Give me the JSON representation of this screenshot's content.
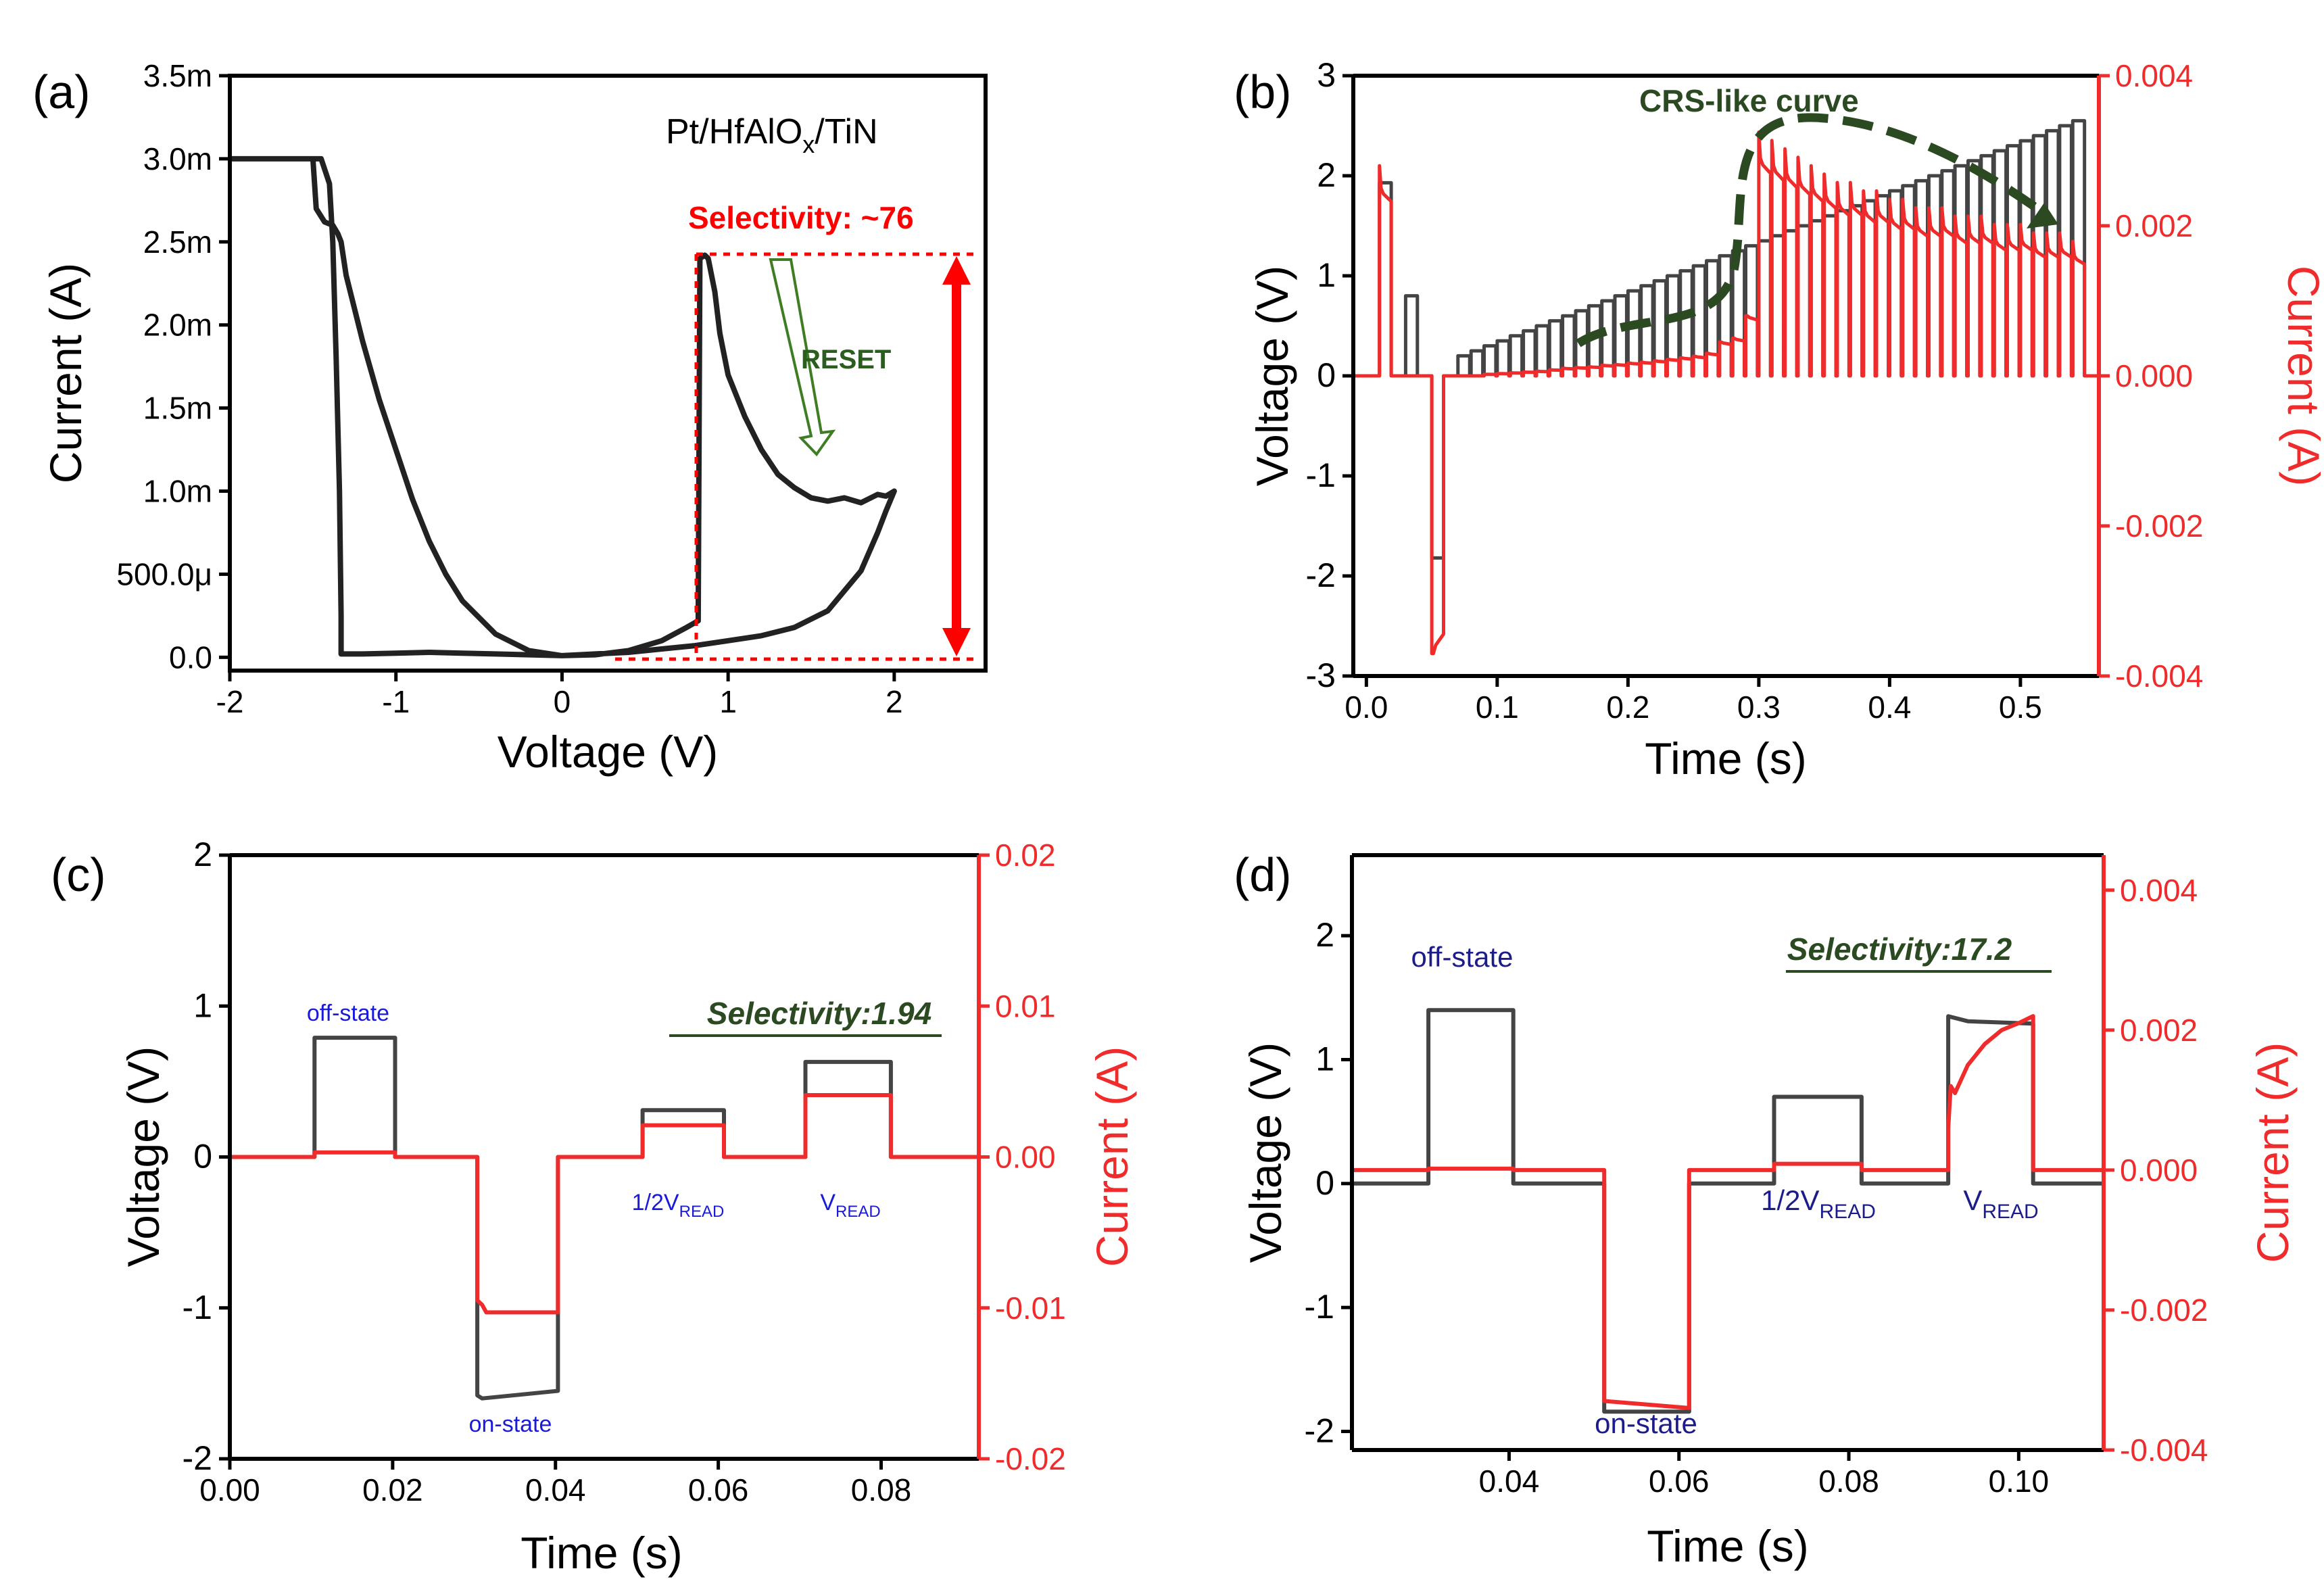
{
  "colors": {
    "black": "#222222",
    "red": "#ef2b2b",
    "red_arrow": "#ff0000",
    "green": "#2b4a22",
    "green_arrow": "#3e7d24",
    "blue": "#1a1adc",
    "navy": "#1c1c8a"
  },
  "chart_data": [
    {
      "id": "a",
      "panel_label": "(a)",
      "type": "line",
      "title": "",
      "xlabel": "Voltage (V)",
      "ylabel": "Current (A)",
      "xlim": [
        -2,
        2.55
      ],
      "ylim": [
        -8e-05,
        0.0035
      ],
      "xticks": [
        -2,
        -1,
        0,
        1,
        2
      ],
      "xtick_labels": [
        "-2",
        "-1",
        "0",
        "1",
        "2"
      ],
      "yticks": [
        0,
        0.0005,
        0.001,
        0.0015,
        0.002,
        0.0025,
        0.003,
        0.0035
      ],
      "ytick_labels": [
        "0.0",
        "500.0μ",
        "1.0m",
        "1.5m",
        "2.0m",
        "2.5m",
        "3.0m",
        "3.5m"
      ],
      "series": [
        {
          "name": "I-V sweep",
          "color": "black",
          "x": [
            -2,
            -1.5,
            -1.48,
            -1.43,
            -1.38,
            -1.35,
            -1.33,
            -1.3,
            -1.2,
            -1.1,
            -1,
            -0.9,
            -0.8,
            -0.7,
            -0.6,
            -0.4,
            -0.2,
            0,
            0.2,
            0.4,
            0.6,
            0.75,
            0.82,
            0.83,
            0.86,
            0.88,
            0.92,
            0.95,
            1.0,
            1.1,
            1.2,
            1.3,
            1.4,
            1.5,
            1.6,
            1.7,
            1.8,
            1.9,
            1.95,
            2.0,
            1.95,
            1.9,
            1.8,
            1.6,
            1.4,
            1.2,
            1.0,
            0.8,
            0.6,
            0.4,
            0.2,
            0,
            -0.2,
            -0.4,
            -0.6,
            -0.8,
            -1.0,
            -1.2,
            -1.33,
            -1.33,
            -1.34,
            -1.36,
            -1.38,
            -1.4,
            -1.45,
            -1.5,
            -2
          ],
          "y": [
            0.003,
            0.003,
            0.0027,
            0.00262,
            0.0026,
            0.00255,
            0.0025,
            0.0023,
            0.0019,
            0.00155,
            0.00125,
            0.00095,
            0.0007,
            0.0005,
            0.00034,
            0.00014,
            4e-05,
            1e-05,
            1.5e-05,
            4e-05,
            0.0001,
            0.00018,
            0.00022,
            0.0024,
            0.00242,
            0.0024,
            0.0022,
            0.00195,
            0.0017,
            0.00145,
            0.00125,
            0.0011,
            0.00102,
            0.00096,
            0.00094,
            0.00096,
            0.00093,
            0.00098,
            0.00097,
            0.001,
            0.00088,
            0.00075,
            0.00052,
            0.00028,
            0.00018,
            0.00013,
            0.0001,
            7e-05,
            5e-05,
            3e-05,
            2e-05,
            1e-05,
            1.5e-05,
            2e-05,
            2.5e-05,
            3e-05,
            2.5e-05,
            2e-05,
            2e-05,
            0.00025,
            0.001,
            0.0018,
            0.0025,
            0.00285,
            0.003,
            0.003,
            0.003
          ]
        }
      ],
      "annotations": {
        "device_pre": "Pt/HfAlO",
        "device_sub": "x",
        "device_post": "/TiN",
        "selectivity": "Selectivity: ~76",
        "reset": "RESET"
      }
    },
    {
      "id": "b",
      "panel_label": "(b)",
      "type": "line",
      "xlabel": "Time (s)",
      "ylabel_left": "Voltage (V)",
      "ylabel_right": "Current (A)",
      "xlim": [
        -0.01,
        0.56
      ],
      "ylim_left": [
        -3,
        3
      ],
      "ylim_right": [
        -0.004,
        0.004
      ],
      "xticks": [
        0,
        0.1,
        0.2,
        0.3,
        0.4,
        0.5
      ],
      "xtick_labels": [
        "0.0",
        "0.1",
        "0.2",
        "0.3",
        "0.4",
        "0.5"
      ],
      "yticks_left": [
        -3,
        -2,
        -1,
        0,
        1,
        2,
        3
      ],
      "ytick_labels_left": [
        "-3",
        "-2",
        "-1",
        "0",
        "1",
        "2",
        "3"
      ],
      "yticks_right": [
        -0.004,
        -0.002,
        0,
        0.002,
        0.004
      ],
      "ytick_labels_right": [
        "-0.004",
        "-0.002",
        "0.000",
        "0.002",
        "0.004"
      ],
      "pulses": {
        "start": [
          0.01,
          0.03,
          0.05,
          0.07,
          0.08,
          0.09,
          0.1,
          0.11,
          0.12,
          0.13,
          0.14,
          0.15,
          0.16,
          0.17,
          0.18,
          0.19,
          0.2,
          0.21,
          0.22,
          0.23,
          0.24,
          0.25,
          0.26,
          0.27,
          0.28,
          0.29,
          0.3,
          0.31,
          0.32,
          0.33,
          0.34,
          0.35,
          0.36,
          0.37,
          0.38,
          0.39,
          0.4,
          0.41,
          0.42,
          0.43,
          0.44,
          0.45,
          0.46,
          0.47,
          0.48,
          0.49,
          0.5,
          0.51,
          0.52,
          0.53,
          0.54
        ],
        "voltage": [
          1.93,
          0.8,
          -1.82,
          0.2,
          0.25,
          0.3,
          0.35,
          0.4,
          0.45,
          0.5,
          0.55,
          0.6,
          0.65,
          0.7,
          0.75,
          0.8,
          0.85,
          0.9,
          0.95,
          1.0,
          1.05,
          1.1,
          1.15,
          1.2,
          1.25,
          1.3,
          1.35,
          1.4,
          1.45,
          1.5,
          1.55,
          1.6,
          1.65,
          1.7,
          1.75,
          1.8,
          1.85,
          1.9,
          1.95,
          2.0,
          2.05,
          2.1,
          2.15,
          2.2,
          2.25,
          2.3,
          2.35,
          2.4,
          2.45,
          2.5,
          2.55
        ],
        "current": [
          0.0025,
          0.0,
          -0.0037,
          0.0,
          0.0,
          2e-05,
          3e-05,
          4e-05,
          5e-05,
          6e-05,
          8e-05,
          0.0001,
          0.00011,
          0.00012,
          0.00014,
          0.00015,
          0.00017,
          0.00018,
          0.0002,
          0.00022,
          0.00024,
          0.00026,
          0.0003,
          0.00045,
          0.0005,
          0.0008,
          0.0029,
          0.0028,
          0.0027,
          0.0026,
          0.0025,
          0.0024,
          0.0023,
          0.0023,
          0.0022,
          0.0022,
          0.0021,
          0.0021,
          0.002,
          0.002,
          0.002,
          0.0019,
          0.0019,
          0.0019,
          0.0018,
          0.0018,
          0.0018,
          0.0017,
          0.0017,
          0.0017,
          0.0016
        ],
        "width": 0.009
      },
      "annotations": {
        "crs": "CRS-like curve"
      }
    },
    {
      "id": "c",
      "panel_label": "(c)",
      "type": "line",
      "xlabel": "Time (s)",
      "ylabel_left": "Voltage (V)",
      "ylabel_right": "Current (A)",
      "xlim": [
        0,
        0.092
      ],
      "ylim_left": [
        -2,
        2
      ],
      "ylim_right": [
        -0.02,
        0.02
      ],
      "xticks": [
        0,
        0.02,
        0.04,
        0.06,
        0.08
      ],
      "xtick_labels": [
        "0.00",
        "0.02",
        "0.04",
        "0.06",
        "0.08"
      ],
      "yticks_left": [
        -2,
        -1,
        0,
        1,
        2
      ],
      "ytick_labels_left": [
        "-2",
        "-1",
        "0",
        "1",
        "2"
      ],
      "yticks_right": [
        -0.02,
        -0.01,
        0,
        0.01,
        0.02
      ],
      "ytick_labels_right": [
        "-0.02",
        "-0.01",
        "0.00",
        "0.01",
        "0.02"
      ],
      "series": [
        {
          "name": "Voltage",
          "color": "black",
          "x": [
            0,
            0.0104,
            0.0104,
            0.0203,
            0.0203,
            0.0304,
            0.0304,
            0.031,
            0.0403,
            0.0403,
            0.0507,
            0.0507,
            0.0607,
            0.0607,
            0.0707,
            0.0707,
            0.0812,
            0.0812,
            0.092
          ],
          "y": [
            0,
            0,
            0.79,
            0.79,
            0,
            0,
            -1.58,
            -1.6,
            -1.55,
            0,
            0,
            0.31,
            0.31,
            0,
            0,
            0.63,
            0.63,
            0,
            0
          ]
        },
        {
          "name": "Current",
          "color": "red",
          "x": [
            0,
            0.0104,
            0.0104,
            0.0203,
            0.0203,
            0.0304,
            0.0304,
            0.031,
            0.0315,
            0.0403,
            0.0403,
            0.0507,
            0.0507,
            0.0607,
            0.0607,
            0.0707,
            0.0707,
            0.0812,
            0.0812,
            0.092
          ],
          "y": [
            0,
            0,
            0.0003,
            0.0003,
            0,
            0,
            -0.0095,
            -0.0098,
            -0.0103,
            -0.0103,
            0,
            0,
            0.0021,
            0.0021,
            0,
            0,
            0.0041,
            0.0041,
            0,
            0
          ]
        }
      ],
      "annotations": {
        "off": "off-state",
        "on": "on-state",
        "half_pre": "1/2V",
        "half_sub": "READ",
        "v_pre": "V",
        "v_sub": "READ",
        "selectivity": "Selectivity:1.94"
      }
    },
    {
      "id": "d",
      "panel_label": "(d)",
      "type": "line",
      "xlabel": "Time (s)",
      "ylabel_left": "Voltage (V)",
      "ylabel_right": "Current (A)",
      "xlim": [
        0.0215,
        0.11
      ],
      "ylim_left": [
        -2.15,
        2.65
      ],
      "ylim_right": [
        -0.004,
        0.0045
      ],
      "xticks": [
        0.04,
        0.06,
        0.08,
        0.1
      ],
      "xtick_labels": [
        "0.04",
        "0.06",
        "0.08",
        "0.10"
      ],
      "yticks_left": [
        -2,
        -1,
        0,
        1,
        2
      ],
      "ytick_labels_left": [
        "-2",
        "-1",
        "0",
        "1",
        "2"
      ],
      "yticks_right": [
        -0.004,
        -0.002,
        0,
        0.002,
        0.004
      ],
      "ytick_labels_right": [
        "-0.004",
        "-0.002",
        "0.000",
        "0.002",
        "0.004"
      ],
      "series": [
        {
          "name": "Voltage",
          "color": "black",
          "x": [
            0.0215,
            0.0305,
            0.0305,
            0.0405,
            0.0405,
            0.0512,
            0.0512,
            0.0612,
            0.0612,
            0.0712,
            0.0712,
            0.0815,
            0.0815,
            0.0917,
            0.0917,
            0.094,
            0.1017,
            0.1017,
            0.11
          ],
          "y": [
            0,
            0,
            1.4,
            1.4,
            0,
            0,
            -1.84,
            -1.84,
            0,
            0,
            0.7,
            0.7,
            0,
            0,
            1.35,
            1.31,
            1.29,
            0,
            0
          ]
        },
        {
          "name": "Current",
          "color": "red",
          "x": [
            0.0215,
            0.0305,
            0.0305,
            0.0405,
            0.0405,
            0.0512,
            0.0512,
            0.0612,
            0.0612,
            0.0712,
            0.0712,
            0.0815,
            0.0815,
            0.0917,
            0.0917,
            0.092,
            0.0925,
            0.094,
            0.096,
            0.098,
            0.1,
            0.1017,
            0.1017,
            0.11
          ],
          "y": [
            0,
            0,
            2e-05,
            2e-05,
            0,
            0,
            -0.0033,
            -0.0034,
            0,
            0,
            9e-05,
            9e-05,
            0,
            0,
            0.0006,
            0.0012,
            0.0011,
            0.0015,
            0.0018,
            0.002,
            0.0021,
            0.0022,
            0,
            0
          ]
        }
      ],
      "annotations": {
        "off": "off-state",
        "on": "on-state",
        "half_pre": "1/2V",
        "half_sub": "READ",
        "v_pre": "V",
        "v_sub": "READ",
        "selectivity": "Selectivity:17.2"
      }
    }
  ]
}
